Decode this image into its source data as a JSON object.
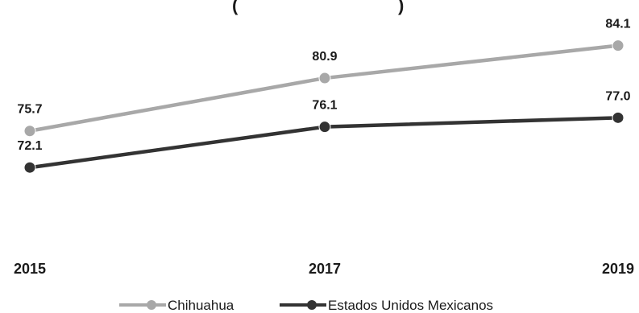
{
  "chart_data": {
    "type": "line",
    "title": "(",
    "categories": [
      "2015",
      "2017",
      "2019"
    ],
    "series": [
      {
        "name": "Chihuahua",
        "values": [
          75.7,
          80.9,
          84.1
        ],
        "color": "#a8a8a8"
      },
      {
        "name": "Estados Unidos Mexicanos",
        "values": [
          72.1,
          76.1,
          77.0
        ],
        "color": "#333333"
      }
    ],
    "data_labels": [
      [
        "75.7",
        "80.9",
        "84.1"
      ],
      [
        "72.1",
        "76.1",
        "77.0"
      ]
    ],
    "ylim": [
      68,
      87
    ],
    "grid": false,
    "legend_position": "bottom"
  }
}
